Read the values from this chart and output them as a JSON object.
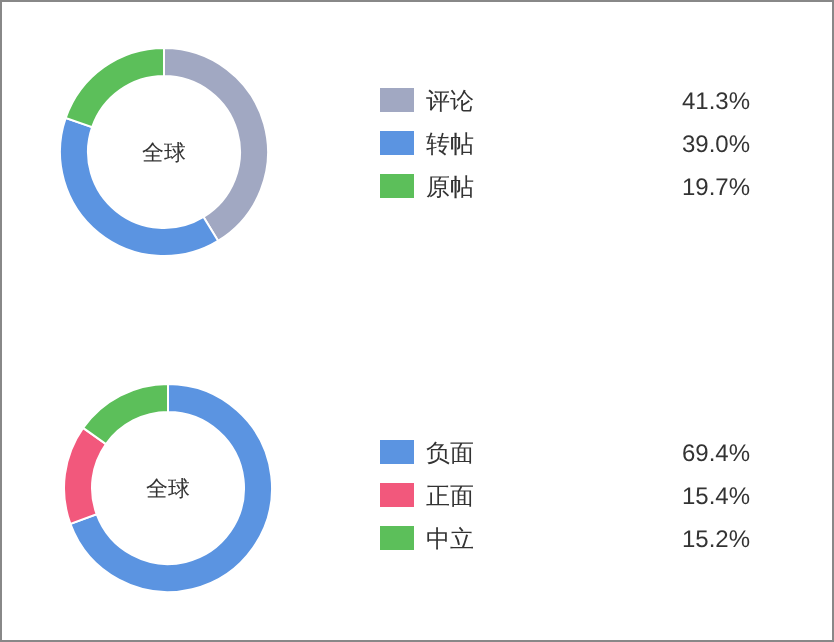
{
  "chart_data": [
    {
      "type": "donut",
      "title": "全球",
      "categories": [
        "评论",
        "转帖",
        "原帖"
      ],
      "values": [
        41.3,
        39.0,
        19.7
      ],
      "colors": [
        "#a1a8c2",
        "#5b94e1",
        "#5cbf5a"
      ],
      "value_labels": [
        "41.3%",
        "39.0%",
        "19.7%"
      ],
      "legend": "right"
    },
    {
      "type": "donut",
      "title": "全球",
      "categories": [
        "负面",
        "正面",
        "中立"
      ],
      "values": [
        69.4,
        15.4,
        15.2
      ],
      "colors": [
        "#5b94e1",
        "#f2587c",
        "#5cbf5a"
      ],
      "value_labels": [
        "69.4%",
        "15.4%",
        "15.2%"
      ],
      "legend": "right"
    }
  ]
}
